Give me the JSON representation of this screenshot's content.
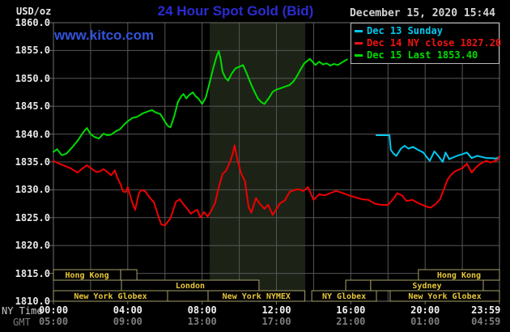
{
  "header": {
    "unit_label": "USD/oz",
    "title": "24 Hour Spot Gold (Bid)",
    "datetime": "December 15, 2020 15:44",
    "watermark": "www.kitco.com"
  },
  "legend": {
    "items": [
      {
        "label": "Dec 13 Sunday",
        "color": "#00c8f0"
      },
      {
        "label": "Dec 14 NY close 1827.20",
        "color": "#f01414"
      },
      {
        "label": "Dec 15 Last 1853.40",
        "color": "#00dc00"
      }
    ]
  },
  "axes": {
    "ny_label": "NY Time",
    "gmt_label": "GMT",
    "y_ticks": [
      {
        "v": 1860,
        "label": "1860.0"
      },
      {
        "v": 1855,
        "label": "1855.0"
      },
      {
        "v": 1850,
        "label": "1850.0"
      },
      {
        "v": 1845,
        "label": "1845.0"
      },
      {
        "v": 1840,
        "label": "1840.0"
      },
      {
        "v": 1835,
        "label": "1835.0"
      },
      {
        "v": 1830,
        "label": "1830.0"
      },
      {
        "v": 1825,
        "label": "1825.0"
      },
      {
        "v": 1820,
        "label": "1820.0"
      },
      {
        "v": 1815,
        "label": "1815.0"
      },
      {
        "v": 1810,
        "label": "1810.0"
      }
    ],
    "x_ticks": [
      {
        "t": 0,
        "ny": "00:00",
        "gmt": "05:00"
      },
      {
        "t": 4,
        "ny": "04:00",
        "gmt": "09:00"
      },
      {
        "t": 8,
        "ny": "08:00",
        "gmt": "13:00"
      },
      {
        "t": 12,
        "ny": "12:00",
        "gmt": "17:00"
      },
      {
        "t": 16,
        "ny": "16:00",
        "gmt": "21:00"
      },
      {
        "t": 20,
        "ny": "20:00",
        "gmt": "01:00"
      },
      {
        "t": 23.27,
        "ny": "23:59",
        "gmt": "04:59"
      }
    ]
  },
  "chart_data": {
    "type": "line",
    "title": "24 Hour Spot Gold (Bid)",
    "ylabel": "USD/oz",
    "xlabel": "NY Time",
    "x_range_hours": [
      0,
      24
    ],
    "ylim": [
      1810,
      1860
    ],
    "y_tick_step": 5,
    "grid": true,
    "legend_position": "top-right",
    "shaded_region": {
      "t1": 8.41,
      "t2": 13.55,
      "color": "#1c2316"
    },
    "series": [
      {
        "name": "Dec 13 Sunday",
        "color": "#00c8f0",
        "points": [
          [
            17.38,
            1839.8
          ],
          [
            18.08,
            1839.8
          ],
          [
            18.15,
            1837.2
          ],
          [
            18.3,
            1836.5
          ],
          [
            18.45,
            1836.1
          ],
          [
            18.7,
            1837.4
          ],
          [
            18.9,
            1837.9
          ],
          [
            19.1,
            1837.4
          ],
          [
            19.35,
            1837.7
          ],
          [
            19.6,
            1837.2
          ],
          [
            19.9,
            1836.7
          ],
          [
            20.1,
            1835.8
          ],
          [
            20.25,
            1835.2
          ],
          [
            20.5,
            1836.9
          ],
          [
            20.7,
            1836.1
          ],
          [
            20.95,
            1835.0
          ],
          [
            21.1,
            1836.7
          ],
          [
            21.3,
            1835.5
          ],
          [
            21.5,
            1835.8
          ],
          [
            21.8,
            1836.2
          ],
          [
            22.0,
            1836.4
          ],
          [
            22.25,
            1836.7
          ],
          [
            22.5,
            1835.7
          ],
          [
            22.8,
            1836.1
          ],
          [
            23.05,
            1835.9
          ],
          [
            23.3,
            1835.7
          ],
          [
            23.6,
            1835.7
          ],
          [
            23.8,
            1835.6
          ],
          [
            24,
            1835.9
          ]
        ]
      },
      {
        "name": "Dec 14 NY close 1827.20",
        "color": "#ee0000",
        "points": [
          [
            0,
            1835.2
          ],
          [
            0.3,
            1834.7
          ],
          [
            0.6,
            1834.3
          ],
          [
            0.9,
            1833.9
          ],
          [
            1.1,
            1833.5
          ],
          [
            1.3,
            1833.1
          ],
          [
            1.55,
            1833.8
          ],
          [
            1.8,
            1834.4
          ],
          [
            2.05,
            1833.8
          ],
          [
            2.3,
            1833.2
          ],
          [
            2.5,
            1833.3
          ],
          [
            2.7,
            1833.7
          ],
          [
            2.9,
            1833.2
          ],
          [
            3.1,
            1832.6
          ],
          [
            3.3,
            1833.5
          ],
          [
            3.45,
            1832.1
          ],
          [
            3.6,
            1831.1
          ],
          [
            3.75,
            1829.7
          ],
          [
            3.9,
            1829.6
          ],
          [
            4.0,
            1830.5
          ],
          [
            4.25,
            1827.6
          ],
          [
            4.4,
            1826.4
          ],
          [
            4.6,
            1829.4
          ],
          [
            4.75,
            1830.0
          ],
          [
            4.95,
            1829.7
          ],
          [
            5.2,
            1828.5
          ],
          [
            5.4,
            1827.8
          ],
          [
            5.6,
            1825.7
          ],
          [
            5.8,
            1823.8
          ],
          [
            6.0,
            1823.6
          ],
          [
            6.3,
            1824.9
          ],
          [
            6.6,
            1827.9
          ],
          [
            6.8,
            1828.3
          ],
          [
            7.0,
            1827.4
          ],
          [
            7.15,
            1826.8
          ],
          [
            7.4,
            1825.7
          ],
          [
            7.6,
            1826.2
          ],
          [
            7.75,
            1826.4
          ],
          [
            7.9,
            1825.0
          ],
          [
            8.1,
            1826.0
          ],
          [
            8.3,
            1825.2
          ],
          [
            8.5,
            1826.3
          ],
          [
            8.7,
            1827.6
          ],
          [
            8.9,
            1830.5
          ],
          [
            9.1,
            1832.8
          ],
          [
            9.3,
            1833.5
          ],
          [
            9.5,
            1835.0
          ],
          [
            9.65,
            1836.5
          ],
          [
            9.75,
            1838.0
          ],
          [
            9.9,
            1835.4
          ],
          [
            10.1,
            1832.9
          ],
          [
            10.3,
            1831.6
          ],
          [
            10.5,
            1826.9
          ],
          [
            10.65,
            1825.9
          ],
          [
            10.9,
            1828.5
          ],
          [
            11.1,
            1827.5
          ],
          [
            11.35,
            1826.6
          ],
          [
            11.55,
            1827.3
          ],
          [
            11.8,
            1825.5
          ],
          [
            12.0,
            1826.6
          ],
          [
            12.2,
            1827.6
          ],
          [
            12.45,
            1828.1
          ],
          [
            12.7,
            1829.6
          ],
          [
            13.0,
            1830.0
          ],
          [
            13.2,
            1830.1
          ],
          [
            13.45,
            1829.8
          ],
          [
            13.7,
            1830.5
          ],
          [
            14.0,
            1828.2
          ],
          [
            14.3,
            1829.2
          ],
          [
            14.6,
            1829.0
          ],
          [
            14.9,
            1829.4
          ],
          [
            15.2,
            1829.8
          ],
          [
            15.5,
            1829.5
          ],
          [
            15.9,
            1829.0
          ],
          [
            16.3,
            1828.6
          ],
          [
            16.6,
            1828.3
          ],
          [
            16.95,
            1828.2
          ],
          [
            17.3,
            1827.5
          ],
          [
            17.65,
            1827.3
          ],
          [
            18.0,
            1827.3
          ],
          [
            18.3,
            1828.4
          ],
          [
            18.5,
            1829.4
          ],
          [
            18.75,
            1829.0
          ],
          [
            19.0,
            1828.0
          ],
          [
            19.3,
            1828.2
          ],
          [
            19.7,
            1827.5
          ],
          [
            20.05,
            1827.0
          ],
          [
            20.3,
            1826.8
          ],
          [
            20.55,
            1827.4
          ],
          [
            20.8,
            1828.3
          ],
          [
            21.0,
            1830.0
          ],
          [
            21.2,
            1831.8
          ],
          [
            21.4,
            1832.7
          ],
          [
            21.6,
            1833.3
          ],
          [
            21.8,
            1833.6
          ],
          [
            22.0,
            1833.9
          ],
          [
            22.25,
            1834.7
          ],
          [
            22.5,
            1833.1
          ],
          [
            22.7,
            1833.9
          ],
          [
            22.9,
            1834.5
          ],
          [
            23.1,
            1834.9
          ],
          [
            23.3,
            1835.2
          ],
          [
            23.5,
            1834.9
          ],
          [
            23.7,
            1835.1
          ],
          [
            23.9,
            1835.4
          ],
          [
            24,
            1836.0
          ]
        ]
      },
      {
        "name": "Dec 15 Last 1853.40",
        "color": "#00dc00",
        "points": [
          [
            0,
            1836.8
          ],
          [
            0.2,
            1837.3
          ],
          [
            0.45,
            1836.2
          ],
          [
            0.7,
            1836.5
          ],
          [
            1.0,
            1837.6
          ],
          [
            1.3,
            1838.8
          ],
          [
            1.6,
            1840.3
          ],
          [
            1.8,
            1841.1
          ],
          [
            2.0,
            1840.0
          ],
          [
            2.2,
            1839.5
          ],
          [
            2.45,
            1839.2
          ],
          [
            2.7,
            1840.1
          ],
          [
            2.9,
            1839.8
          ],
          [
            3.1,
            1839.9
          ],
          [
            3.35,
            1840.5
          ],
          [
            3.6,
            1840.9
          ],
          [
            3.8,
            1841.7
          ],
          [
            4.0,
            1842.3
          ],
          [
            4.25,
            1842.9
          ],
          [
            4.5,
            1843.1
          ],
          [
            4.8,
            1843.7
          ],
          [
            5.1,
            1844.1
          ],
          [
            5.3,
            1844.3
          ],
          [
            5.5,
            1843.9
          ],
          [
            5.75,
            1843.6
          ],
          [
            5.95,
            1842.5
          ],
          [
            6.15,
            1841.5
          ],
          [
            6.3,
            1841.2
          ],
          [
            6.5,
            1843.2
          ],
          [
            6.7,
            1845.8
          ],
          [
            6.9,
            1846.9
          ],
          [
            7.0,
            1847.2
          ],
          [
            7.15,
            1846.4
          ],
          [
            7.3,
            1847.0
          ],
          [
            7.5,
            1847.5
          ],
          [
            7.65,
            1846.8
          ],
          [
            7.8,
            1846.4
          ],
          [
            8.0,
            1845.4
          ],
          [
            8.2,
            1846.6
          ],
          [
            8.4,
            1849.2
          ],
          [
            8.6,
            1851.8
          ],
          [
            8.8,
            1854.2
          ],
          [
            8.9,
            1854.9
          ],
          [
            9.0,
            1853.4
          ],
          [
            9.1,
            1851.2
          ],
          [
            9.25,
            1850.1
          ],
          [
            9.4,
            1849.6
          ],
          [
            9.6,
            1850.9
          ],
          [
            9.8,
            1851.8
          ],
          [
            10.0,
            1852.1
          ],
          [
            10.2,
            1852.4
          ],
          [
            10.4,
            1850.9
          ],
          [
            10.6,
            1849.2
          ],
          [
            10.8,
            1847.7
          ],
          [
            11.0,
            1846.4
          ],
          [
            11.2,
            1845.7
          ],
          [
            11.35,
            1845.4
          ],
          [
            11.6,
            1846.5
          ],
          [
            11.8,
            1847.6
          ],
          [
            12.0,
            1848.0
          ],
          [
            12.2,
            1848.2
          ],
          [
            12.45,
            1848.5
          ],
          [
            12.7,
            1848.8
          ],
          [
            12.9,
            1849.4
          ],
          [
            13.1,
            1850.4
          ],
          [
            13.3,
            1851.6
          ],
          [
            13.5,
            1852.7
          ],
          [
            13.8,
            1853.5
          ],
          [
            14.1,
            1852.4
          ],
          [
            14.3,
            1853.0
          ],
          [
            14.5,
            1852.5
          ],
          [
            14.7,
            1852.7
          ],
          [
            14.9,
            1852.3
          ],
          [
            15.1,
            1852.6
          ],
          [
            15.3,
            1852.4
          ],
          [
            15.55,
            1852.9
          ],
          [
            15.8,
            1853.4
          ]
        ]
      }
    ],
    "sessions": {
      "rows": [
        [
          {
            "t1": 0,
            "t2": 3.62,
            "label": "Hong Kong"
          },
          {
            "t1": 3.62,
            "t2": 4.49,
            "label": ""
          },
          {
            "t1": 19.64,
            "t2": 24,
            "label": "Hong Kong"
          }
        ],
        [
          {
            "t1": 3.66,
            "t2": 11.06,
            "label": "London"
          },
          {
            "t1": 15.73,
            "t2": 17.07,
            "label": ""
          },
          {
            "t1": 17.07,
            "t2": 23.13,
            "label": "Sydney"
          }
        ],
        [
          {
            "t1": 0,
            "t2": 6.14,
            "label": "New York Globex"
          },
          {
            "t1": 6.14,
            "t2": 8.32,
            "label": ""
          },
          {
            "t1": 8.32,
            "t2": 13.53,
            "label": "New York NYMEX"
          },
          {
            "t1": 13.9,
            "t2": 17.38,
            "label": "NY Globex"
          },
          {
            "t1": 18.12,
            "t2": 24,
            "label": "New York Globex"
          }
        ]
      ]
    }
  },
  "colors": {
    "background": "#000000",
    "grid": "#565656",
    "plot_border": "#6e6e6e",
    "session_box_border": "#a8a068",
    "session_label": "#e8c83a",
    "title_blue": "#2b2bd2",
    "watermark_blue": "#3353dc",
    "datetime_gray": "#d4d4d4"
  }
}
